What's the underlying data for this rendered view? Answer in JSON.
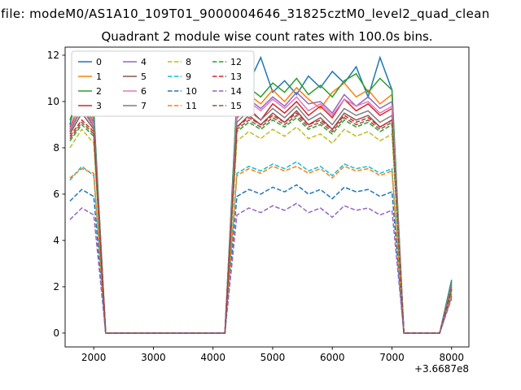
{
  "figure": {
    "suptitle": "n file: modeM0/AS1A10_109T01_9000004646_31825cztM0_level2_quad_clean"
  },
  "chart_data": {
    "type": "line",
    "title": "Quadrant 2 module wise count rates with 100.0s bins.",
    "xlabel": "",
    "ylabel": "",
    "x_offset_label": "+3.6687e8",
    "xlim": [
      1520,
      8290
    ],
    "ylim": [
      -0.6,
      12.35
    ],
    "xticks": [
      2000,
      3000,
      4000,
      5000,
      6000,
      7000,
      8000
    ],
    "yticks": [
      0,
      2,
      4,
      6,
      8,
      10,
      12
    ],
    "grid": false,
    "legend": {
      "position": "upper-left",
      "columns": 4,
      "fill_order": "column-major"
    },
    "x": [
      1600,
      1800,
      2000,
      2200,
      2400,
      2600,
      2800,
      3000,
      3200,
      3400,
      3600,
      3800,
      4000,
      4200,
      4400,
      4600,
      4800,
      5000,
      5200,
      5400,
      5600,
      5800,
      6000,
      6200,
      6400,
      6600,
      6800,
      7000,
      7200,
      7400,
      7600,
      7800,
      8000
    ],
    "series": [
      {
        "name": "0",
        "color": "#1f77b4",
        "dash": false,
        "values": [
          9.0,
          11.2,
          9.6,
          0,
          0,
          0,
          0,
          0,
          0,
          0,
          0,
          0,
          0,
          0,
          10.2,
          10.8,
          11.9,
          10.4,
          10.9,
          10.3,
          11.1,
          10.6,
          11.3,
          10.8,
          11.5,
          10.2,
          11.9,
          10.5,
          0,
          0,
          0,
          0,
          2.3
        ]
      },
      {
        "name": "1",
        "color": "#ff7f0e",
        "dash": false,
        "values": [
          8.8,
          10.4,
          9.2,
          0,
          0,
          0,
          0,
          0,
          0,
          0,
          0,
          0,
          0,
          0,
          9.8,
          10.3,
          9.9,
          10.5,
          10.0,
          10.6,
          10.1,
          9.7,
          10.4,
          10.8,
          10.2,
          10.5,
          9.9,
          10.3,
          0,
          0,
          0,
          0,
          2.1
        ]
      },
      {
        "name": "2",
        "color": "#2ca02c",
        "dash": false,
        "values": [
          9.2,
          10.6,
          9.4,
          0,
          0,
          0,
          0,
          0,
          0,
          0,
          0,
          0,
          0,
          0,
          10.1,
          10.6,
          10.2,
          10.8,
          10.4,
          11.0,
          10.3,
          10.7,
          10.2,
          10.9,
          11.2,
          10.4,
          11.0,
          10.5,
          0,
          0,
          0,
          0,
          2.2
        ]
      },
      {
        "name": "3",
        "color": "#d62728",
        "dash": false,
        "values": [
          8.9,
          9.8,
          9.0,
          0,
          0,
          0,
          0,
          0,
          0,
          0,
          0,
          0,
          0,
          0,
          9.3,
          9.7,
          9.2,
          9.9,
          9.5,
          10.0,
          9.4,
          9.8,
          9.3,
          10.1,
          9.6,
          9.9,
          9.4,
          9.7,
          0,
          0,
          0,
          0,
          2.0
        ]
      },
      {
        "name": "4",
        "color": "#9467bd",
        "dash": false,
        "values": [
          8.7,
          10.0,
          9.1,
          0,
          0,
          0,
          0,
          0,
          0,
          0,
          0,
          0,
          0,
          0,
          9.6,
          10.1,
          9.7,
          10.2,
          9.8,
          10.4,
          9.9,
          10.0,
          9.5,
          10.3,
          9.8,
          10.2,
          9.7,
          10.0,
          0,
          0,
          0,
          0,
          2.1
        ]
      },
      {
        "name": "5",
        "color": "#8c564b",
        "dash": false,
        "values": [
          8.6,
          9.5,
          8.8,
          0,
          0,
          0,
          0,
          0,
          0,
          0,
          0,
          0,
          0,
          0,
          8.9,
          9.4,
          9.0,
          9.5,
          9.1,
          9.6,
          9.0,
          9.3,
          8.8,
          9.5,
          9.2,
          9.4,
          8.9,
          9.2,
          0,
          0,
          0,
          0,
          1.9
        ]
      },
      {
        "name": "6",
        "color": "#e377c2",
        "dash": false,
        "values": [
          8.8,
          9.9,
          9.0,
          0,
          0,
          0,
          0,
          0,
          0,
          0,
          0,
          0,
          0,
          0,
          9.5,
          10.0,
          9.6,
          10.1,
          9.7,
          10.2,
          9.6,
          9.9,
          9.4,
          10.1,
          9.8,
          10.0,
          9.5,
          9.8,
          0,
          0,
          0,
          0,
          2.0
        ]
      },
      {
        "name": "7",
        "color": "#7f7f7f",
        "dash": false,
        "values": [
          8.7,
          9.7,
          8.9,
          0,
          0,
          0,
          0,
          0,
          0,
          0,
          0,
          0,
          0,
          0,
          9.1,
          9.6,
          9.2,
          9.7,
          9.3,
          9.8,
          9.2,
          9.5,
          9.0,
          9.7,
          9.4,
          9.6,
          9.1,
          9.4,
          0,
          0,
          0,
          0,
          2.0
        ]
      },
      {
        "name": "8",
        "color": "#bcbd22",
        "dash": true,
        "values": [
          8.0,
          8.8,
          8.2,
          0,
          0,
          0,
          0,
          0,
          0,
          0,
          0,
          0,
          0,
          0,
          8.3,
          8.7,
          8.4,
          8.8,
          8.5,
          8.9,
          8.4,
          8.6,
          8.2,
          8.8,
          8.5,
          8.7,
          8.3,
          8.6,
          0,
          0,
          0,
          0,
          1.8
        ]
      },
      {
        "name": "9",
        "color": "#17becf",
        "dash": true,
        "values": [
          6.6,
          7.2,
          6.8,
          0,
          0,
          0,
          0,
          0,
          0,
          0,
          0,
          0,
          0,
          0,
          6.9,
          7.2,
          7.0,
          7.3,
          7.1,
          7.4,
          7.0,
          7.2,
          6.8,
          7.3,
          7.1,
          7.2,
          6.9,
          7.1,
          0,
          0,
          0,
          0,
          1.7
        ]
      },
      {
        "name": "10",
        "color": "#1f77b4",
        "dash": true,
        "values": [
          5.7,
          6.2,
          5.9,
          0,
          0,
          0,
          0,
          0,
          0,
          0,
          0,
          0,
          0,
          0,
          5.9,
          6.2,
          6.0,
          6.3,
          6.1,
          6.4,
          6.0,
          6.2,
          5.8,
          6.3,
          6.1,
          6.2,
          5.9,
          6.1,
          0,
          0,
          0,
          0,
          1.6
        ]
      },
      {
        "name": "11",
        "color": "#ff7f0e",
        "dash": true,
        "values": [
          6.7,
          7.1,
          6.9,
          0,
          0,
          0,
          0,
          0,
          0,
          0,
          0,
          0,
          0,
          0,
          6.8,
          7.1,
          6.9,
          7.2,
          7.0,
          7.2,
          6.9,
          7.1,
          6.7,
          7.2,
          7.0,
          7.1,
          6.8,
          7.0,
          0,
          0,
          0,
          0,
          1.7
        ]
      },
      {
        "name": "12",
        "color": "#2ca02c",
        "dash": true,
        "values": [
          8.3,
          9.0,
          8.5,
          0,
          0,
          0,
          0,
          0,
          0,
          0,
          0,
          0,
          0,
          0,
          8.7,
          9.1,
          8.8,
          9.2,
          8.9,
          9.3,
          8.8,
          9.0,
          8.6,
          9.2,
          8.9,
          9.1,
          8.7,
          9.0,
          0,
          0,
          0,
          0,
          1.9
        ]
      },
      {
        "name": "13",
        "color": "#d62728",
        "dash": true,
        "values": [
          8.5,
          9.2,
          8.7,
          0,
          0,
          0,
          0,
          0,
          0,
          0,
          0,
          0,
          0,
          0,
          8.9,
          9.3,
          9.0,
          9.4,
          9.1,
          9.5,
          9.0,
          9.2,
          8.8,
          9.4,
          9.1,
          9.3,
          8.9,
          9.2,
          0,
          0,
          0,
          0,
          1.9
        ]
      },
      {
        "name": "14",
        "color": "#9467bd",
        "dash": true,
        "values": [
          4.9,
          5.4,
          5.1,
          0,
          0,
          0,
          0,
          0,
          0,
          0,
          0,
          0,
          0,
          0,
          5.1,
          5.4,
          5.2,
          5.5,
          5.3,
          5.6,
          5.2,
          5.4,
          5.0,
          5.5,
          5.3,
          5.4,
          5.1,
          5.3,
          0,
          0,
          0,
          0,
          1.5
        ]
      },
      {
        "name": "15",
        "color": "#8c564b",
        "dash": true,
        "values": [
          8.4,
          9.1,
          8.6,
          0,
          0,
          0,
          0,
          0,
          0,
          0,
          0,
          0,
          0,
          0,
          8.8,
          9.2,
          8.9,
          9.3,
          9.0,
          9.4,
          8.9,
          9.1,
          8.7,
          9.3,
          9.0,
          9.2,
          8.8,
          9.1,
          0,
          0,
          0,
          0,
          1.9
        ]
      }
    ]
  }
}
